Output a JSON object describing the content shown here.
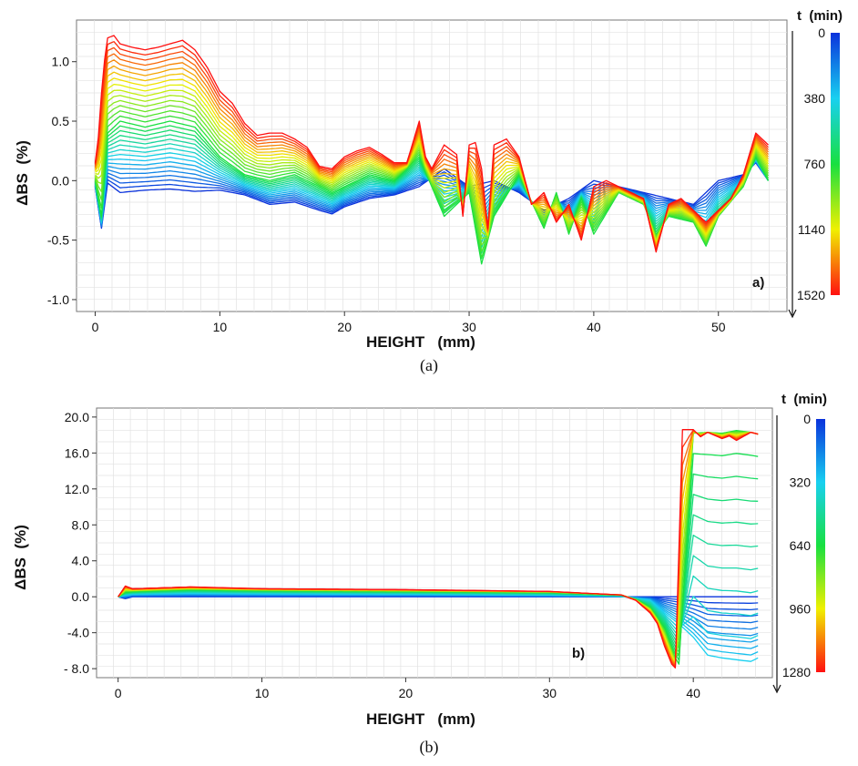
{
  "chart_data": [
    {
      "type": "line",
      "panel_tag": "a)",
      "caption": "(a)",
      "xlabel": "HEIGHT   (mm)",
      "ylabel": "ΔBS  (%)",
      "xlim": [
        -1.5,
        55.5
      ],
      "ylim": [
        -1.1,
        1.35
      ],
      "xticks": [
        0,
        10,
        20,
        30,
        40,
        50
      ],
      "yticks": [
        1.0,
        0.5,
        0.0,
        -0.5,
        -1.0
      ],
      "ytick_labels": [
        "1.0",
        "0.5",
        "0.0",
        "-0.5",
        "-1.0"
      ],
      "grid": true,
      "colorbar": {
        "title": "t  (min)",
        "ticks": [
          0,
          380,
          760,
          1140,
          1520
        ],
        "colors": [
          "#0a32dc",
          "#18d0f0",
          "#18e040",
          "#f0f000",
          "#ff1010"
        ]
      },
      "series": [
        {
          "time": 0,
          "x": [
            0,
            0.5,
            1,
            2,
            4,
            6,
            8,
            10,
            12,
            14,
            16,
            18,
            19,
            20,
            22,
            24,
            26,
            28,
            30,
            32,
            34,
            36,
            38,
            40,
            42,
            44,
            46,
            48,
            50,
            52,
            53,
            54
          ],
          "y": [
            -0.05,
            -0.4,
            -0.02,
            -0.1,
            -0.08,
            -0.07,
            -0.09,
            -0.08,
            -0.12,
            -0.2,
            -0.18,
            -0.25,
            -0.28,
            -0.22,
            -0.15,
            -0.12,
            -0.05,
            0.1,
            -0.05,
            0.0,
            -0.1,
            -0.25,
            -0.15,
            0.0,
            -0.05,
            -0.1,
            -0.15,
            -0.2,
            0.0,
            0.05,
            0.15,
            0.0
          ]
        },
        {
          "time": 760,
          "x": [
            0,
            0.5,
            1,
            2,
            4,
            6,
            8,
            10,
            12,
            14,
            16,
            18,
            19,
            20,
            22,
            24,
            26,
            28,
            30,
            31,
            32,
            34,
            36,
            37,
            38,
            39,
            40,
            42,
            44,
            45,
            46,
            48,
            49,
            50,
            52,
            53,
            54
          ],
          "y": [
            0.0,
            -0.3,
            0.4,
            0.5,
            0.45,
            0.5,
            0.45,
            0.2,
            0.05,
            0.0,
            0.05,
            -0.05,
            -0.1,
            -0.05,
            0.05,
            0.0,
            0.2,
            -0.3,
            -0.1,
            -0.7,
            -0.3,
            0.05,
            -0.4,
            -0.1,
            -0.45,
            -0.15,
            -0.45,
            -0.1,
            -0.2,
            -0.45,
            -0.3,
            -0.35,
            -0.55,
            -0.3,
            -0.05,
            0.2,
            0.0
          ]
        },
        {
          "time": 1520,
          "x": [
            0,
            0.3,
            0.6,
            1,
            1.5,
            2,
            3,
            4,
            5,
            6,
            7,
            8,
            9,
            10,
            11,
            12,
            13,
            14,
            15,
            16,
            17,
            18,
            19,
            20,
            21,
            22,
            23,
            24,
            25,
            26,
            26.5,
            27,
            28,
            29,
            29.5,
            30,
            30.5,
            31,
            31.5,
            32,
            33,
            34,
            35,
            36,
            37,
            38,
            39,
            40,
            41,
            42,
            43,
            44,
            45,
            46,
            47,
            48,
            49,
            50,
            51,
            52,
            53,
            53.5,
            54
          ],
          "y": [
            0.15,
            0.4,
            0.9,
            1.2,
            1.22,
            1.15,
            1.12,
            1.1,
            1.12,
            1.15,
            1.18,
            1.1,
            0.95,
            0.75,
            0.65,
            0.48,
            0.38,
            0.4,
            0.4,
            0.35,
            0.28,
            0.12,
            0.1,
            0.2,
            0.25,
            0.28,
            0.22,
            0.15,
            0.15,
            0.5,
            0.2,
            0.1,
            0.3,
            0.22,
            -0.3,
            0.3,
            0.32,
            0.1,
            -0.4,
            0.3,
            0.35,
            0.2,
            -0.2,
            -0.1,
            -0.35,
            -0.2,
            -0.5,
            -0.05,
            0.0,
            -0.05,
            -0.1,
            -0.15,
            -0.6,
            -0.2,
            -0.15,
            -0.25,
            -0.35,
            -0.25,
            -0.15,
            0.05,
            0.4,
            0.35,
            0.3
          ]
        }
      ]
    },
    {
      "type": "line",
      "panel_tag": "b)",
      "caption": "(b)",
      "xlabel": "HEIGHT   (mm)",
      "ylabel": "ΔBS  (%)",
      "xlim": [
        -1.5,
        45.5
      ],
      "ylim": [
        -9,
        21
      ],
      "xticks": [
        0,
        10,
        20,
        30,
        40
      ],
      "yticks": [
        20,
        16,
        12,
        8,
        4,
        0,
        -4,
        -8
      ],
      "ytick_labels": [
        "20.0",
        "16.0",
        "12.0",
        "8.0",
        "4.0",
        "0.0",
        "-4.0",
        "- 8.0"
      ],
      "grid": true,
      "colorbar": {
        "title": "t  (min)",
        "ticks": [
          0,
          320,
          640,
          960,
          1280
        ],
        "colors": [
          "#0a32dc",
          "#18d0f0",
          "#18e040",
          "#f0f000",
          "#ff1010"
        ]
      },
      "series": [
        {
          "time": 0,
          "x": [
            0,
            0.5,
            1,
            5,
            10,
            20,
            30,
            35,
            37,
            39,
            40,
            41,
            42,
            43,
            44,
            44.5
          ],
          "y": [
            0,
            -0.2,
            0,
            0,
            0,
            0,
            0,
            0,
            0,
            0,
            0,
            0,
            0,
            0,
            0,
            0
          ]
        },
        {
          "time": 320,
          "x": [
            0,
            0.5,
            1,
            5,
            10,
            20,
            30,
            35,
            37,
            38,
            39,
            40,
            41,
            42,
            43,
            44,
            44.5
          ],
          "y": [
            0,
            0.2,
            0.3,
            0.4,
            0.35,
            0.3,
            0.2,
            0.05,
            -0.4,
            -1.8,
            -3,
            -4.5,
            -6.5,
            -6.8,
            -7,
            -7.2,
            -6.8
          ]
        },
        {
          "time": 640,
          "x": [
            0,
            0.5,
            1,
            5,
            10,
            20,
            30,
            35,
            36,
            37,
            38,
            38.8,
            39,
            40,
            41,
            42,
            43,
            44,
            44.5
          ],
          "y": [
            0,
            0.5,
            0.6,
            0.8,
            0.7,
            0.6,
            0.5,
            0.2,
            -0.3,
            -1.2,
            -3.5,
            -7,
            -7.5,
            18.2,
            18.3,
            18.2,
            18.5,
            18.3,
            18.1
          ]
        },
        {
          "time": 1280,
          "x": [
            0,
            0.5,
            1,
            5,
            10,
            20,
            30,
            35,
            36,
            37,
            37.5,
            38,
            38.5,
            38.8,
            39.2,
            40,
            40.5,
            41,
            42,
            42.5,
            43,
            44,
            44.5
          ],
          "y": [
            0,
            1.2,
            0.9,
            1.1,
            0.9,
            0.8,
            0.6,
            0.2,
            -0.4,
            -1.8,
            -3,
            -5.5,
            -7.5,
            -8,
            18.6,
            18.6,
            17.8,
            18.3,
            17.6,
            17.9,
            17.4,
            18.3,
            18.1
          ]
        }
      ]
    }
  ]
}
